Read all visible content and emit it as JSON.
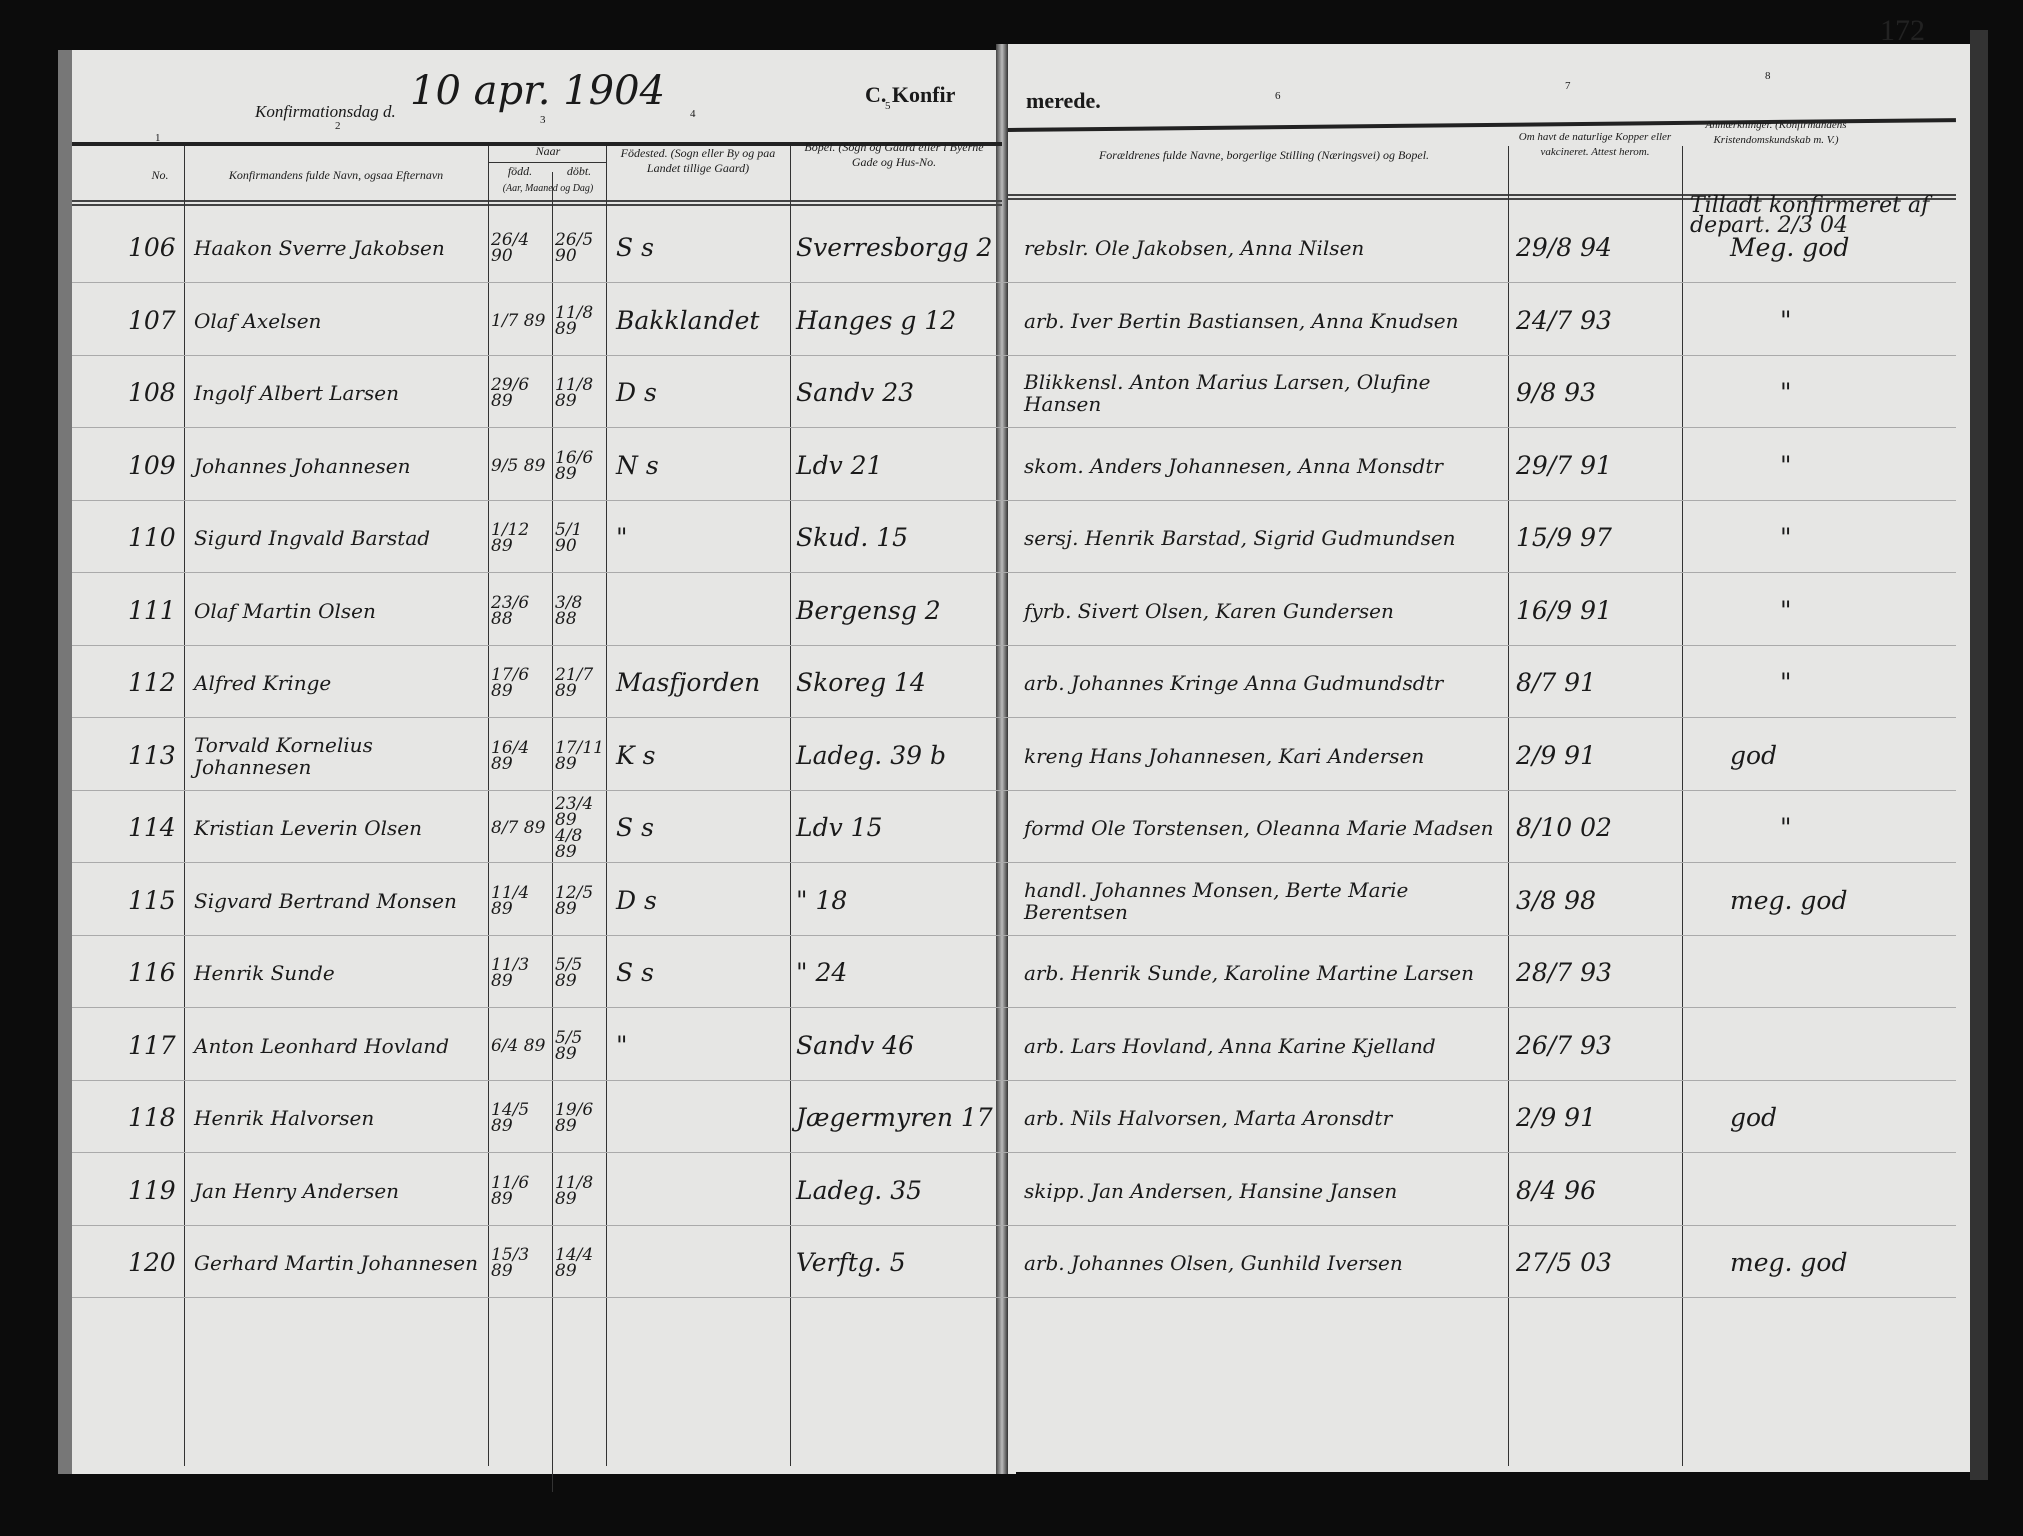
{
  "page_number": "172",
  "heading": {
    "date_label": "Konfirmationsdag d.",
    "date_value": "10 apr. 1904",
    "section_left": "C. Konfir",
    "section_right": "merede."
  },
  "column_numbers": [
    "1",
    "2",
    "3",
    "4",
    "5",
    "6",
    "7",
    "8"
  ],
  "columns": {
    "no": "No.",
    "name": "Konfirmandens fulde Navn, ogsaa Efternavn",
    "naar": "Naar",
    "fodt": "född.",
    "dobt": "döbt.",
    "date_note": "(Aar, Maaned og Dag)",
    "fodested": "Födested. (Sogn eller By og paa Landet tillige Gaard)",
    "bopel": "Bopel. (Sogn og Gaard eller i Byerne Gade og Hus-No.",
    "parents": "Forældrenes fulde Navne, borgerlige Stilling (Næringsvei) og Bopel.",
    "vaccine": "Om havt de naturlige Kopper eller vakcineret. Attest herom.",
    "remarks": "Anmærkninger. (Konfirmandens Kristendomskundskab m. V.)"
  },
  "top_note": "Tilladt konfirmeret af depart. 2/3 04",
  "rows": [
    {
      "no": "106",
      "name": "Haakon Sverre Jakobsen",
      "born": "26/4 90",
      "baptized": "26/5 90",
      "birthplace": "S s",
      "residence": "Sverresborgg 2",
      "parents": "rebslr. Ole Jakobsen, Anna Nilsen",
      "vaccine": "29/8 94",
      "remarks": "Meg. god"
    },
    {
      "no": "107",
      "name": "Olaf Axelsen",
      "born": "1/7 89",
      "baptized": "11/8 89",
      "birthplace": "Bakklandet",
      "residence": "Hanges g 12",
      "parents": "arb. Iver Bertin Bastiansen, Anna Knudsen",
      "vaccine": "24/7 93",
      "remarks": "\""
    },
    {
      "no": "108",
      "name": "Ingolf Albert Larsen",
      "born": "29/6 89",
      "baptized": "11/8 89",
      "birthplace": "D s",
      "residence": "Sandv 23",
      "parents": "Blikkensl. Anton Marius Larsen, Olufine Hansen",
      "vaccine": "9/8 93",
      "remarks": "\""
    },
    {
      "no": "109",
      "name": "Johannes Johannesen",
      "born": "9/5 89",
      "baptized": "16/6 89",
      "birthplace": "N s",
      "residence": "Ldv 21",
      "parents": "skom. Anders Johannesen, Anna Monsdtr",
      "vaccine": "29/7 91",
      "remarks": "\""
    },
    {
      "no": "110",
      "name": "Sigurd Ingvald Barstad",
      "born": "1/12 89",
      "baptized": "5/1 90",
      "birthplace": "\"",
      "residence": "Skud. 15",
      "parents": "sersj. Henrik Barstad, Sigrid Gudmundsen",
      "vaccine": "15/9 97",
      "remarks": "\""
    },
    {
      "no": "111",
      "name": "Olaf Martin Olsen",
      "born": "23/6 88",
      "baptized": "3/8 88",
      "birthplace": "",
      "residence": "Bergensg 2",
      "parents": "fyrb. Sivert Olsen, Karen Gundersen",
      "vaccine": "16/9 91",
      "remarks": "\""
    },
    {
      "no": "112",
      "name": "Alfred Kringe",
      "born": "17/6 89",
      "baptized": "21/7 89",
      "birthplace": "Masfjorden",
      "residence": "Skoreg 14",
      "parents": "arb. Johannes Kringe Anna Gudmundsdtr",
      "vaccine": "8/7 91",
      "remarks": "\""
    },
    {
      "no": "113",
      "name": "Torvald Kornelius Johannesen",
      "born": "16/4 89",
      "baptized": "17/11 89",
      "birthplace": "K s",
      "residence": "Ladeg. 39 b",
      "parents": "kreng Hans Johannesen, Kari Andersen",
      "vaccine": "2/9 91",
      "remarks": "god"
    },
    {
      "no": "114",
      "name": "Kristian Leverin Olsen",
      "born": "8/7 89",
      "baptized": "23/4 89 4/8 89",
      "birthplace": "S s",
      "residence": "Ldv 15",
      "parents": "formd Ole Torstensen, Oleanna Marie Madsen",
      "vaccine": "8/10 02",
      "remarks": "\""
    },
    {
      "no": "115",
      "name": "Sigvard Bertrand Monsen",
      "born": "11/4 89",
      "baptized": "12/5 89",
      "birthplace": "D s",
      "residence": "\" 18",
      "parents": "handl. Johannes Monsen, Berte Marie Berentsen",
      "vaccine": "3/8 98",
      "remarks": "meg. god"
    },
    {
      "no": "116",
      "name": "Henrik Sunde",
      "born": "11/3 89",
      "baptized": "5/5 89",
      "birthplace": "S s",
      "residence": "\" 24",
      "parents": "arb. Henrik Sunde, Karoline Martine Larsen",
      "vaccine": "28/7 93",
      "remarks": ""
    },
    {
      "no": "117",
      "name": "Anton Leonhard Hovland",
      "born": "6/4 89",
      "baptized": "5/5 89",
      "birthplace": "\"",
      "residence": "Sandv 46",
      "parents": "arb. Lars Hovland, Anna Karine Kjelland",
      "vaccine": "26/7 93",
      "remarks": ""
    },
    {
      "no": "118",
      "name": "Henrik Halvorsen",
      "born": "14/5 89",
      "baptized": "19/6 89",
      "birthplace": "",
      "residence": "Jægermyren 17",
      "parents": "arb. Nils Halvorsen, Marta Aronsdtr",
      "vaccine": "2/9 91",
      "remarks": "god"
    },
    {
      "no": "119",
      "name": "Jan Henry Andersen",
      "born": "11/6 89",
      "baptized": "11/8 89",
      "birthplace": "",
      "residence": "Ladeg. 35",
      "parents": "skipp. Jan Andersen, Hansine Jansen",
      "vaccine": "8/4 96",
      "remarks": ""
    },
    {
      "no": "120",
      "name": "Gerhard Martin Johannesen",
      "born": "15/3 89",
      "baptized": "14/4 89",
      "birthplace": "",
      "residence": "Verftg. 5",
      "parents": "arb. Johannes Olsen, Gunhild Iversen",
      "vaccine": "27/5 03",
      "remarks": "meg. god"
    }
  ]
}
